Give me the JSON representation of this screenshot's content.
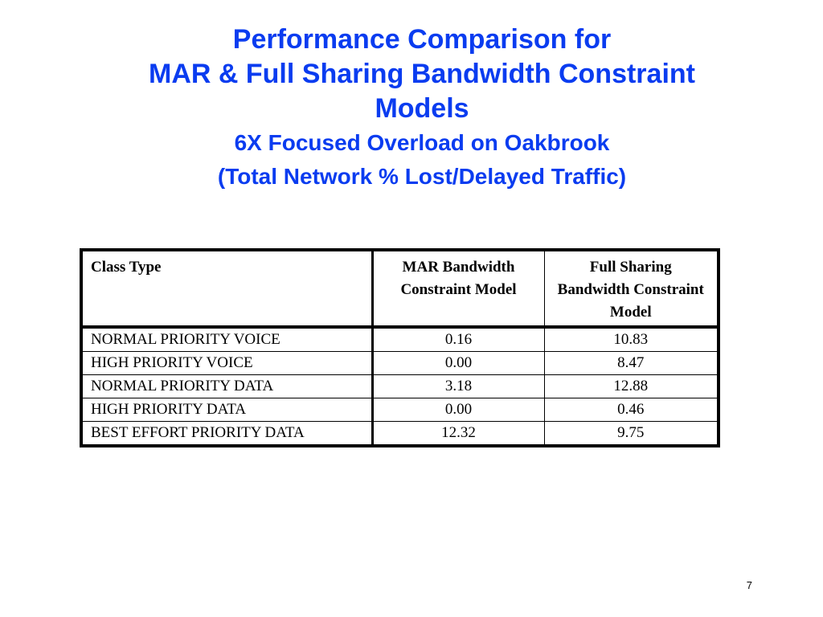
{
  "slide": {
    "title_lines": [
      "Performance Comparison for",
      "MAR & Full Sharing Bandwidth Constraint",
      "Models"
    ],
    "subtitle_lines": [
      "6X Focused Overload on Oakbrook",
      "(Total Network % Lost/Delayed Traffic)"
    ],
    "page_number": "7"
  },
  "table": {
    "headers": [
      "Class Type",
      "MAR Bandwidth Constraint Model",
      "Full Sharing Bandwidth Constraint Model"
    ],
    "rows": [
      [
        "NORMAL PRIORITY VOICE",
        "0.16",
        "10.83"
      ],
      [
        "HIGH PRIORITY VOICE",
        "0.00",
        "8.47"
      ],
      [
        "NORMAL PRIORITY DATA",
        "3.18",
        "12.88"
      ],
      [
        "HIGH PRIORITY DATA",
        "0.00",
        "0.46"
      ],
      [
        "BEST EFFORT PRIORITY DATA",
        "12.32",
        "9.75"
      ]
    ]
  },
  "colors": {
    "title": "#0a3cf0",
    "text": "#000000",
    "background": "#ffffff"
  }
}
